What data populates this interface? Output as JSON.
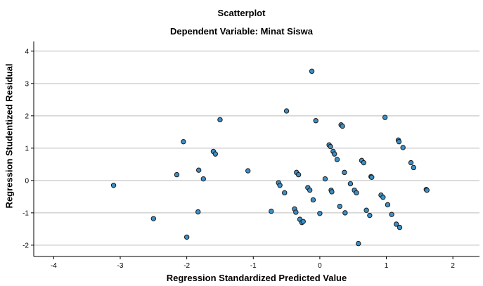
{
  "chart_data": {
    "type": "scatter",
    "title": "Scatterplot",
    "subtitle": "Dependent Variable: Minat Siswa",
    "xlabel": "Regression Standardized Predicted Value",
    "ylabel": "Regression Studentized Residual",
    "xlim": [
      -4.3,
      2.4
    ],
    "ylim": [
      -2.35,
      4.3
    ],
    "xticks": [
      "-4",
      "-3",
      "-2",
      "-1",
      "0",
      "1",
      "2"
    ],
    "yticks": [
      "-2",
      "-1",
      "0",
      "1",
      "2",
      "3",
      "4"
    ],
    "grid": "horizontal",
    "legend": "none",
    "marker_color": "#3d8fc6",
    "marker_edge": "#1a1a1a",
    "points": [
      {
        "x": -3.1,
        "y": -0.15
      },
      {
        "x": -2.5,
        "y": -1.18
      },
      {
        "x": -2.15,
        "y": 0.18
      },
      {
        "x": -2.05,
        "y": 1.2
      },
      {
        "x": -2.0,
        "y": -1.75
      },
      {
        "x": -1.82,
        "y": 0.32
      },
      {
        "x": -1.83,
        "y": -0.97
      },
      {
        "x": -1.75,
        "y": 0.05
      },
      {
        "x": -1.6,
        "y": 0.9
      },
      {
        "x": -1.57,
        "y": 0.82
      },
      {
        "x": -1.5,
        "y": 1.88
      },
      {
        "x": -1.08,
        "y": 0.3
      },
      {
        "x": -0.73,
        "y": -0.95
      },
      {
        "x": -0.62,
        "y": -0.07
      },
      {
        "x": -0.6,
        "y": -0.15
      },
      {
        "x": -0.53,
        "y": -0.38
      },
      {
        "x": -0.5,
        "y": 2.15
      },
      {
        "x": -0.38,
        "y": -0.88
      },
      {
        "x": -0.36,
        "y": -0.98
      },
      {
        "x": -0.35,
        "y": 0.25
      },
      {
        "x": -0.32,
        "y": 0.18
      },
      {
        "x": -0.3,
        "y": -1.2
      },
      {
        "x": -0.27,
        "y": -1.3
      },
      {
        "x": -0.25,
        "y": -1.27
      },
      {
        "x": -0.18,
        "y": -0.22
      },
      {
        "x": -0.15,
        "y": -0.3
      },
      {
        "x": -0.12,
        "y": 3.38
      },
      {
        "x": -0.1,
        "y": -0.6
      },
      {
        "x": -0.06,
        "y": 1.85
      },
      {
        "x": 0.0,
        "y": -1.02
      },
      {
        "x": 0.08,
        "y": 0.05
      },
      {
        "x": 0.14,
        "y": 1.1
      },
      {
        "x": 0.16,
        "y": 1.05
      },
      {
        "x": 0.17,
        "y": -0.3
      },
      {
        "x": 0.18,
        "y": -0.35
      },
      {
        "x": 0.2,
        "y": 0.9
      },
      {
        "x": 0.22,
        "y": 0.82
      },
      {
        "x": 0.26,
        "y": 0.65
      },
      {
        "x": 0.3,
        "y": -0.8
      },
      {
        "x": 0.32,
        "y": 1.72
      },
      {
        "x": 0.34,
        "y": 1.68
      },
      {
        "x": 0.37,
        "y": 0.25
      },
      {
        "x": 0.38,
        "y": -1.0
      },
      {
        "x": 0.46,
        "y": -0.1
      },
      {
        "x": 0.52,
        "y": -0.3
      },
      {
        "x": 0.55,
        "y": -0.38
      },
      {
        "x": 0.58,
        "y": -1.95
      },
      {
        "x": 0.63,
        "y": 0.62
      },
      {
        "x": 0.66,
        "y": 0.55
      },
      {
        "x": 0.7,
        "y": -0.92
      },
      {
        "x": 0.75,
        "y": -1.08
      },
      {
        "x": 0.77,
        "y": 0.12
      },
      {
        "x": 0.78,
        "y": 0.1
      },
      {
        "x": 0.92,
        "y": -0.45
      },
      {
        "x": 0.95,
        "y": -0.52
      },
      {
        "x": 0.98,
        "y": 1.95
      },
      {
        "x": 1.02,
        "y": -0.75
      },
      {
        "x": 1.08,
        "y": -1.05
      },
      {
        "x": 1.15,
        "y": -1.35
      },
      {
        "x": 1.18,
        "y": 1.25
      },
      {
        "x": 1.19,
        "y": 1.2
      },
      {
        "x": 1.2,
        "y": -1.45
      },
      {
        "x": 1.25,
        "y": 1.02
      },
      {
        "x": 1.37,
        "y": 0.55
      },
      {
        "x": 1.41,
        "y": 0.4
      },
      {
        "x": 1.6,
        "y": -0.28
      },
      {
        "x": 1.61,
        "y": -0.3
      }
    ]
  }
}
